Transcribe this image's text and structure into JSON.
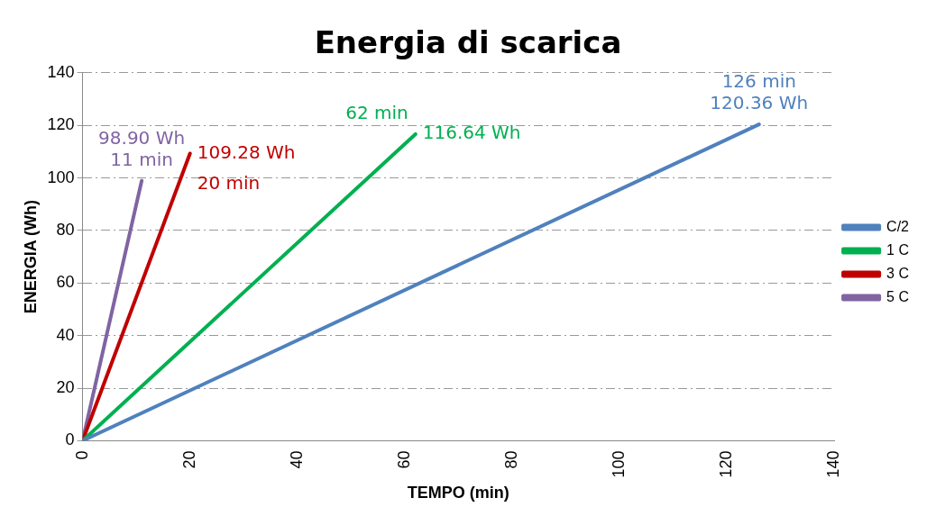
{
  "chart_data": {
    "type": "line",
    "title": "Energia di scarica",
    "xlabel": "TEMPO (min)",
    "ylabel": "ENERGIA (Wh)",
    "xlim": [
      0,
      140
    ],
    "xticks": [
      0,
      20,
      40,
      60,
      80,
      100,
      120,
      140
    ],
    "ylim": [
      0,
      140
    ],
    "yticks": [
      0,
      20,
      40,
      60,
      80,
      100,
      120,
      140
    ],
    "grid": "y",
    "legend": "right",
    "marker": "none",
    "line_style": "solid",
    "series": [
      {
        "name": "C/2",
        "color": "#4f81bd",
        "x": [
          0,
          126
        ],
        "values": [
          0,
          120.36
        ]
      },
      {
        "name": "1 C",
        "color": "#00b050",
        "x": [
          0,
          62
        ],
        "values": [
          0,
          116.64
        ]
      },
      {
        "name": "3 C",
        "color": "#c00000",
        "x": [
          0,
          20
        ],
        "values": [
          0,
          109.28
        ]
      },
      {
        "name": "5 C",
        "color": "#8064a2",
        "x": [
          0,
          11
        ],
        "values": [
          0,
          98.9
        ]
      }
    ],
    "annotations": [
      {
        "text": "120.36 Wh",
        "x": 126,
        "y": 120.36
      },
      {
        "text": "126 min",
        "x": 126,
        "y": 120.36
      },
      {
        "text": "116.64 Wh",
        "x": 62,
        "y": 116.64
      },
      {
        "text": "62 min",
        "x": 62,
        "y": 116.64
      },
      {
        "text": "109.28 Wh",
        "x": 20,
        "y": 109.28
      },
      {
        "text": "20 min",
        "x": 20,
        "y": 109.28
      },
      {
        "text": "98.90 Wh",
        "x": 11,
        "y": 98.9
      },
      {
        "text": "11 min",
        "x": 11,
        "y": 98.9
      }
    ]
  }
}
